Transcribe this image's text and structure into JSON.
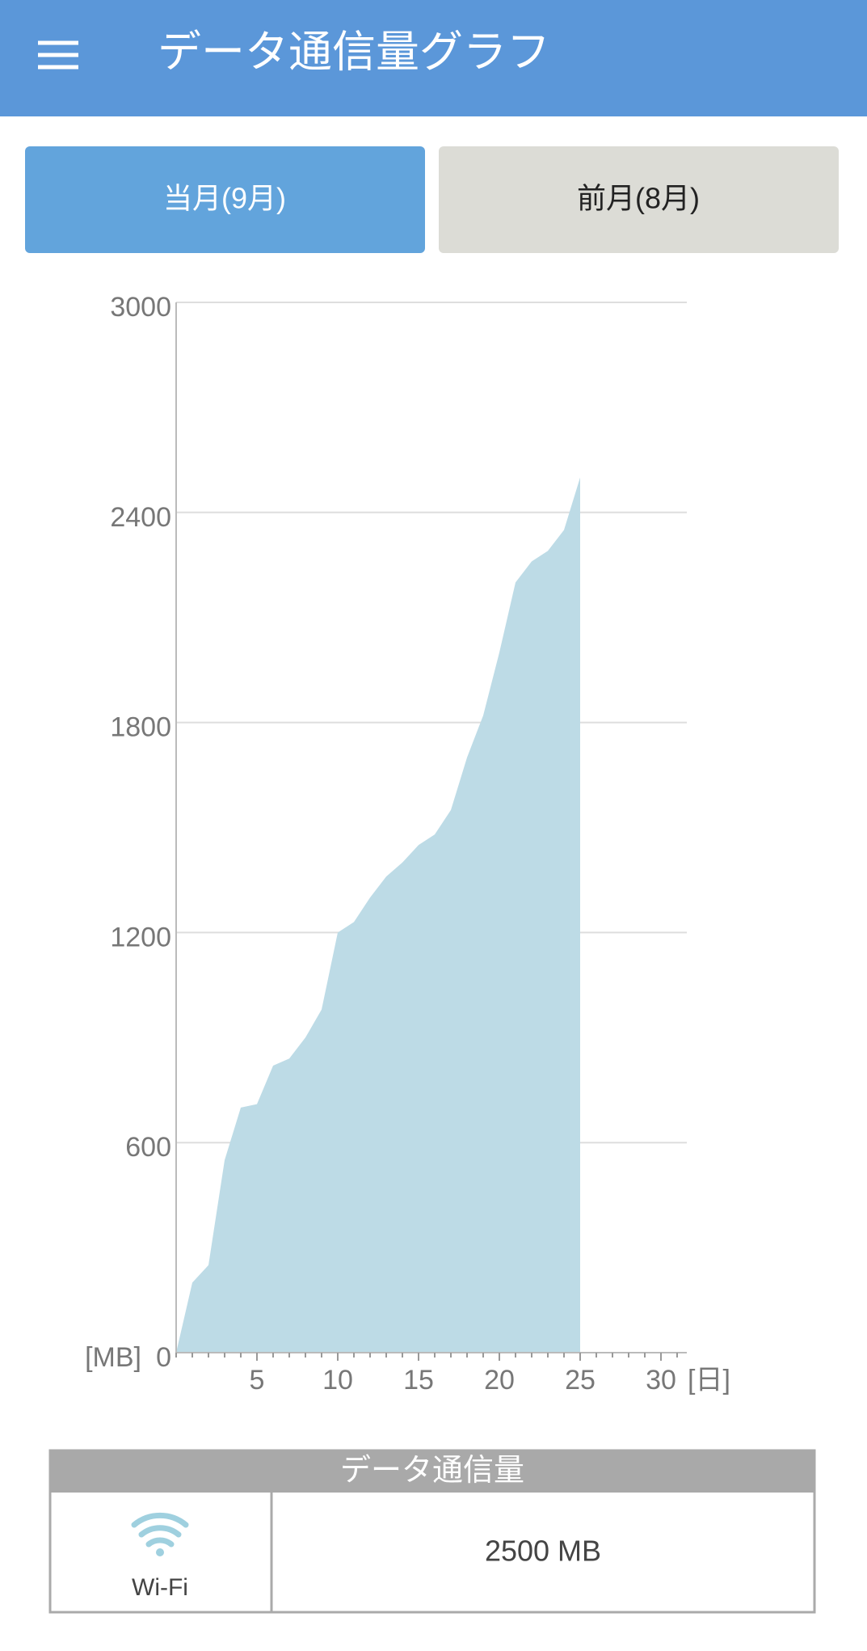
{
  "header": {
    "title": "データ通信量グラフ"
  },
  "tabs": [
    "当月(9月)",
    "前月(8月)"
  ],
  "chart_data": {
    "type": "area",
    "x": [
      0,
      1,
      2,
      3,
      4,
      5,
      6,
      7,
      8,
      9,
      10,
      11,
      12,
      13,
      14,
      15,
      16,
      17,
      18,
      19,
      20,
      21,
      22,
      23,
      24,
      25
    ],
    "values": [
      0,
      200,
      250,
      550,
      700,
      710,
      820,
      840,
      900,
      980,
      1200,
      1230,
      1300,
      1360,
      1400,
      1450,
      1480,
      1550,
      1700,
      1820,
      2000,
      2200,
      2260,
      2290,
      2350,
      2500
    ],
    "color": "#bddbe6",
    "xlim": [
      0,
      31.6
    ],
    "xticks": [
      5,
      10,
      15,
      20,
      25,
      30
    ],
    "x_unit": "[日]",
    "ylim": [
      0,
      3000
    ],
    "yticks": [
      0,
      600,
      1200,
      1800,
      2400,
      3000
    ],
    "y_unit": "[MB]",
    "grid": true
  },
  "table": {
    "header": "データ通信量",
    "rows": [
      [
        "Wi-Fi",
        "2500 MB"
      ]
    ]
  }
}
